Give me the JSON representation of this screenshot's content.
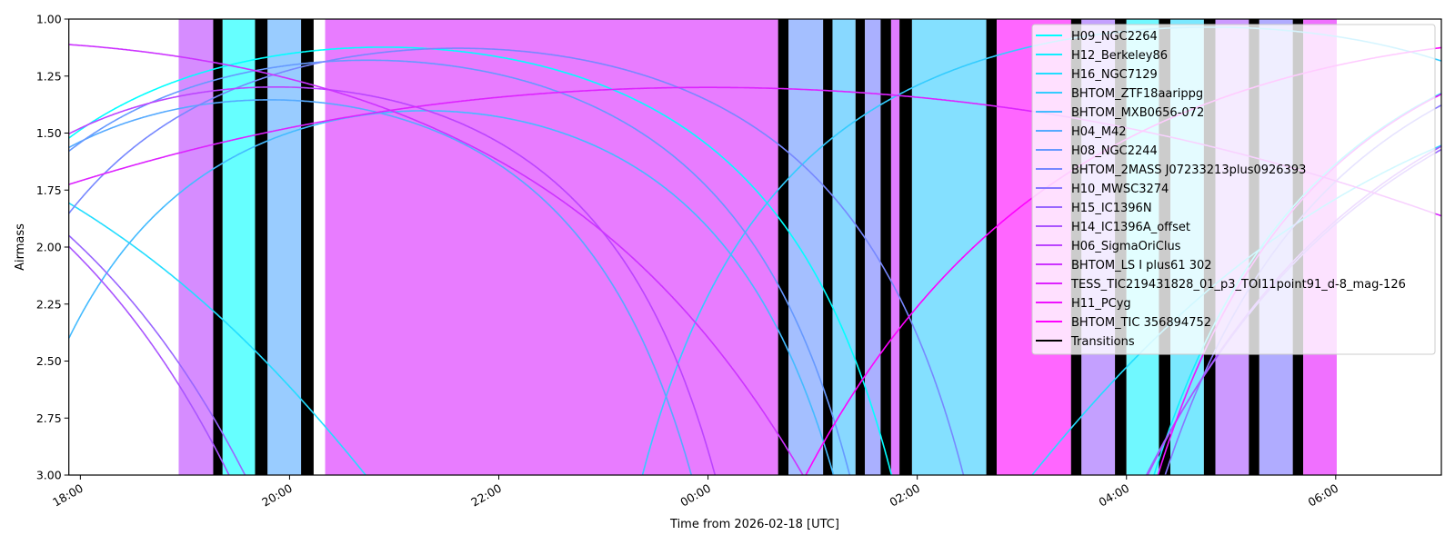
{
  "chart_data": {
    "type": "line",
    "title": "",
    "xlabel": "Time from 2026-02-18 [UTC]",
    "ylabel": "Airmass",
    "x_units": "hours since 2026-02-18 00:00 UTC",
    "xlim": [
      17.89,
      31.01
    ],
    "ylim": [
      3.0,
      1.0
    ],
    "y_inverted": true,
    "grid": false,
    "legend_position": "top-right",
    "site_latitude_deg": 37,
    "x_ticks": [
      {
        "value": 18,
        "label": "18:00"
      },
      {
        "value": 20,
        "label": "20:00"
      },
      {
        "value": 22,
        "label": "22:00"
      },
      {
        "value": 24,
        "label": "00:00"
      },
      {
        "value": 26,
        "label": "02:00"
      },
      {
        "value": 28,
        "label": "04:00"
      },
      {
        "value": 30,
        "label": "06:00"
      }
    ],
    "y_ticks": [
      {
        "value": 1.0,
        "label": "1.00"
      },
      {
        "value": 1.25,
        "label": "1.25"
      },
      {
        "value": 1.5,
        "label": "1.50"
      },
      {
        "value": 1.75,
        "label": "1.75"
      },
      {
        "value": 2.0,
        "label": "2.00"
      },
      {
        "value": 2.25,
        "label": "2.25"
      },
      {
        "value": 2.5,
        "label": "2.50"
      },
      {
        "value": 2.75,
        "label": "2.75"
      },
      {
        "value": 3.0,
        "label": "3.00"
      }
    ],
    "series": [
      {
        "name": "H09_NGC2264",
        "color": "#00ffff",
        "transit_utc_h": 20.9,
        "dec_deg": 9.9
      },
      {
        "name": "H12_Berkeley86",
        "color": "#11eeff",
        "transit_utc_h": 34.51,
        "dec_deg": 38.7
      },
      {
        "name": "H16_NGC7129",
        "color": "#22ddff",
        "transit_utc_h": 35.88,
        "dec_deg": 66.1
      },
      {
        "name": "BHTOM_ZTF18aarippg",
        "color": "#33ccff",
        "transit_utc_h": 28.8,
        "dec_deg": 22
      },
      {
        "name": "BHTOM_MXB0656-072",
        "color": "#44bbff",
        "transit_utc_h": 21.3,
        "dec_deg": -7.5
      },
      {
        "name": "H04_M42",
        "color": "#55aaff",
        "transit_utc_h": 19.81,
        "dec_deg": -5.4
      },
      {
        "name": "H08_NGC2244",
        "color": "#6699ff",
        "transit_utc_h": 20.75,
        "dec_deg": 4.9
      },
      {
        "name": "BHTOM_2MASS J07233213plus0926393",
        "color": "#7788ff",
        "transit_utc_h": 21.61,
        "dec_deg": 9.44
      },
      {
        "name": "H10_MWSC3274",
        "color": "#8877ff",
        "transit_utc_h": 34.8,
        "dec_deg": 42
      },
      {
        "name": "H15_IC1396N",
        "color": "#9966ff",
        "transit_utc_h": 35.85,
        "dec_deg": 58.3
      },
      {
        "name": "H14_IC1396A_offset",
        "color": "#aa55ff",
        "transit_utc_h": 35.78,
        "dec_deg": 57.5
      },
      {
        "name": "H06_SigmaOriClus",
        "color": "#bb44ff",
        "transit_utc_h": 19.87,
        "dec_deg": -2.6
      },
      {
        "name": "BHTOM_LS I plus61 302",
        "color": "#cc33ff",
        "transit_utc_h": 16.91,
        "dec_deg": 61.2
      },
      {
        "name": "TESS_TIC219431828_01_p3_TOI11point91_d-8_mag-126",
        "color": "#dd22ff",
        "transit_utc_h": 24.0,
        "dec_deg": 76.7
      },
      {
        "name": "H11_PCyg",
        "color": "#ee11ff",
        "transit_utc_h": 34.51,
        "dec_deg": 38.0
      },
      {
        "name": "BHTOM_TIC 356894752",
        "color": "#ff00ff",
        "transit_utc_h": 32.67,
        "dec_deg": 59
      }
    ],
    "transitions_legend": {
      "name": "Transitions",
      "color": "#000000"
    },
    "bands": [
      {
        "start": 18.94,
        "end": 19.27,
        "color": "#d68cff"
      },
      {
        "start": 19.27,
        "end": 19.36,
        "color": "#000000"
      },
      {
        "start": 19.36,
        "end": 19.67,
        "color": "#66ffff"
      },
      {
        "start": 19.67,
        "end": 19.79,
        "color": "#000000"
      },
      {
        "start": 19.79,
        "end": 20.11,
        "color": "#99ccff"
      },
      {
        "start": 20.11,
        "end": 20.23,
        "color": "#000000"
      },
      {
        "start": 20.34,
        "end": 24.67,
        "color": "#e87cff"
      },
      {
        "start": 24.67,
        "end": 24.77,
        "color": "#000000"
      },
      {
        "start": 24.77,
        "end": 25.1,
        "color": "#a4bfff"
      },
      {
        "start": 25.1,
        "end": 25.19,
        "color": "#000000"
      },
      {
        "start": 25.19,
        "end": 25.41,
        "color": "#88d8ff"
      },
      {
        "start": 25.41,
        "end": 25.5,
        "color": "#000000"
      },
      {
        "start": 25.5,
        "end": 25.65,
        "color": "#aab0ff"
      },
      {
        "start": 25.65,
        "end": 25.75,
        "color": "#000000"
      },
      {
        "start": 25.75,
        "end": 25.83,
        "color": "#e07cff"
      },
      {
        "start": 25.83,
        "end": 25.95,
        "color": "#000000"
      },
      {
        "start": 25.95,
        "end": 26.66,
        "color": "#84e0ff"
      },
      {
        "start": 26.66,
        "end": 26.76,
        "color": "#000000"
      },
      {
        "start": 26.76,
        "end": 27.47,
        "color": "#ff66ff"
      },
      {
        "start": 27.47,
        "end": 27.57,
        "color": "#000000"
      },
      {
        "start": 27.57,
        "end": 27.89,
        "color": "#c4a0ff"
      },
      {
        "start": 27.89,
        "end": 28.0,
        "color": "#000000"
      },
      {
        "start": 28.0,
        "end": 28.31,
        "color": "#70f8ff"
      },
      {
        "start": 28.31,
        "end": 28.42,
        "color": "#000000"
      },
      {
        "start": 28.42,
        "end": 28.74,
        "color": "#7ae8ff"
      },
      {
        "start": 28.74,
        "end": 28.85,
        "color": "#000000"
      },
      {
        "start": 28.85,
        "end": 29.17,
        "color": "#cc99ff"
      },
      {
        "start": 29.17,
        "end": 29.27,
        "color": "#000000"
      },
      {
        "start": 29.27,
        "end": 29.59,
        "color": "#b0acff"
      },
      {
        "start": 29.59,
        "end": 29.69,
        "color": "#000000"
      },
      {
        "start": 29.69,
        "end": 30.01,
        "color": "#f070ff"
      }
    ]
  }
}
